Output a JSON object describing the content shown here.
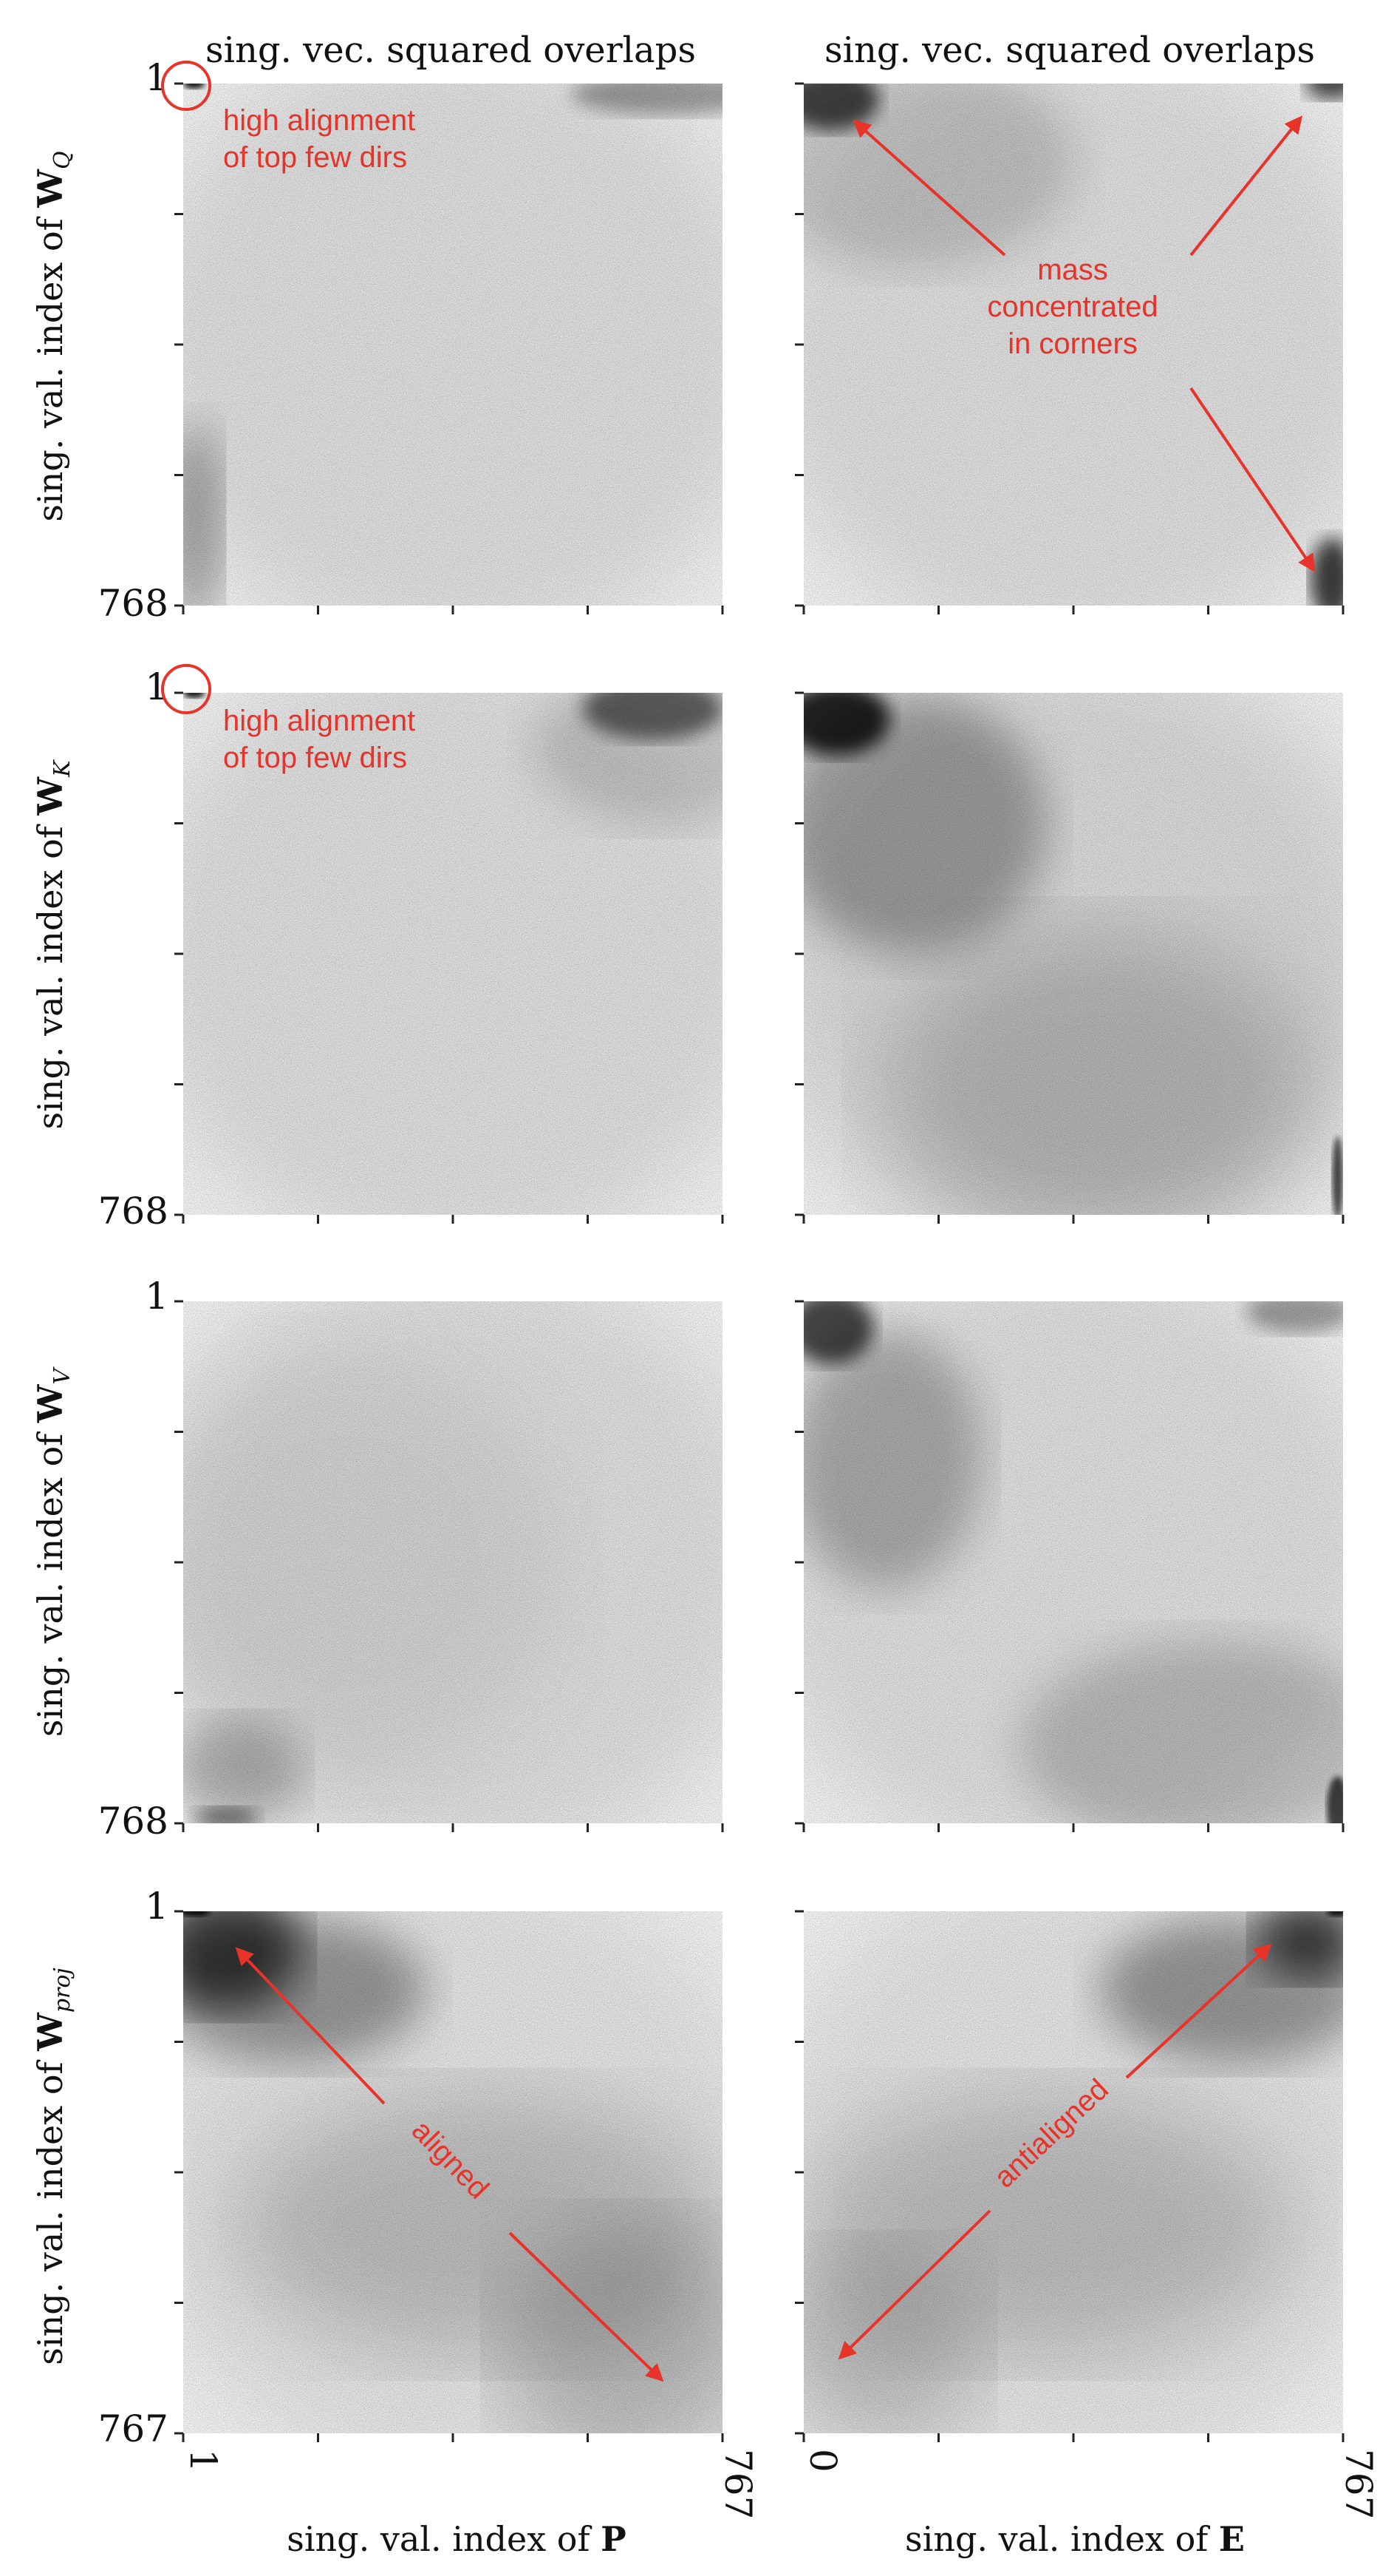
{
  "column_titles": [
    "sing. vec. squared overlaps",
    "sing. vec. squared overlaps"
  ],
  "row_labels": [
    {
      "prefix": "sing. val. index of ",
      "bold": "W",
      "sub": "Q"
    },
    {
      "prefix": "sing. val. index of ",
      "bold": "W",
      "sub": "K"
    },
    {
      "prefix": "sing. val. index of ",
      "bold": "W",
      "sub": "V"
    },
    {
      "prefix": "sing. val. index of ",
      "bold": "W",
      "sub": "proj"
    }
  ],
  "x_labels": [
    {
      "prefix": "sing. val. index of ",
      "bold": "P"
    },
    {
      "prefix": "sing. val. index of ",
      "bold": "E"
    }
  ],
  "y_tick_top": "1",
  "y_tick_bottom": [
    "768",
    "768",
    "768",
    "767"
  ],
  "x_ticks_left": [
    "1",
    "767"
  ],
  "x_ticks_right": [
    "0",
    "767"
  ],
  "annotations": {
    "high_alignment_q": [
      "high alignment",
      "of top few dirs"
    ],
    "high_alignment_k": [
      "high alignment",
      "of top few dirs"
    ],
    "mass_corners": [
      "mass",
      "concentrated",
      "in corners"
    ],
    "aligned": "aligned",
    "antialigned": "antialigned"
  },
  "colors": {
    "annotation": "#e8332a",
    "heatmap_max": "#000000",
    "heatmap_min": "#ffffff"
  },
  "chart_data": {
    "type": "heatmap",
    "title": "sing. vec. squared overlaps",
    "colormap": "greys",
    "panels": [
      {
        "row": "W_Q",
        "col": "P",
        "x_range": [
          1,
          767
        ],
        "y_range": [
          1,
          768
        ],
        "pattern": "uniform low overlap; high alignment of top few dirs at top-left; light band along top edge at high P index"
      },
      {
        "row": "W_Q",
        "col": "E",
        "x_range": [
          0,
          767
        ],
        "y_range": [
          1,
          768
        ],
        "pattern": "mass concentrated in corners (top-left, top-right, bottom-right)"
      },
      {
        "row": "W_K",
        "col": "P",
        "x_range": [
          1,
          767
        ],
        "y_range": [
          1,
          768
        ],
        "pattern": "uniform low overlap; high alignment of top few dirs at top-left; dark patch at top-right"
      },
      {
        "row": "W_K",
        "col": "E",
        "x_range": [
          0,
          767
        ],
        "y_range": [
          1,
          768
        ],
        "pattern": "strong mass at top-left corner, decaying along diagonal; edge at right"
      },
      {
        "row": "W_V",
        "col": "P",
        "x_range": [
          1,
          767
        ],
        "y_range": [
          1,
          768
        ],
        "pattern": "near uniform, slight mass at bottom-left"
      },
      {
        "row": "W_V",
        "col": "E",
        "x_range": [
          0,
          767
        ],
        "y_range": [
          1,
          768
        ],
        "pattern": "mass at top-left and bottom-right"
      },
      {
        "row": "W_proj",
        "col": "P",
        "x_range": [
          1,
          767
        ],
        "y_range": [
          1,
          767
        ],
        "pattern": "aligned: mass along main diagonal, strongest top-left"
      },
      {
        "row": "W_proj",
        "col": "E",
        "x_range": [
          0,
          767
        ],
        "y_range": [
          1,
          767
        ],
        "pattern": "antialigned: mass along anti-diagonal, strongest top-right"
      }
    ]
  }
}
